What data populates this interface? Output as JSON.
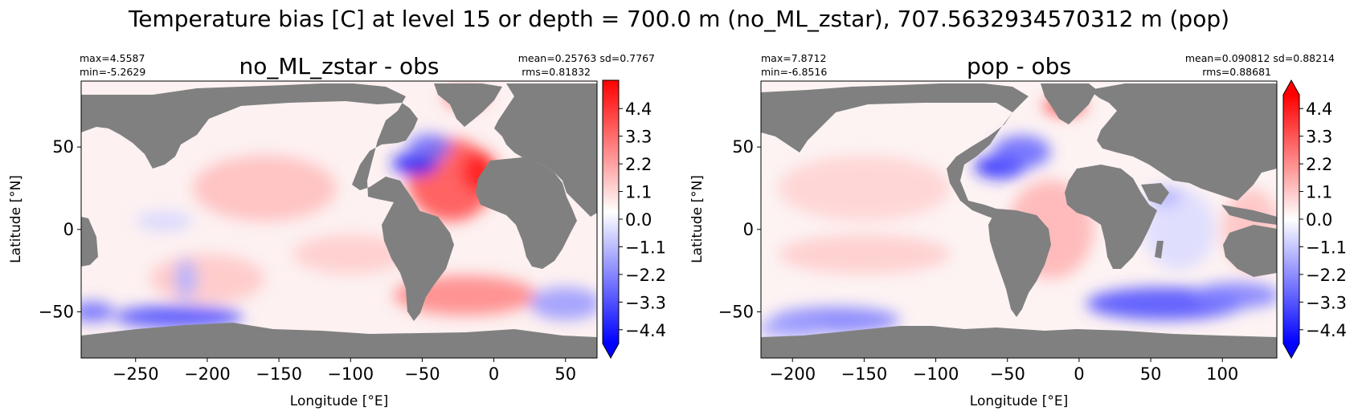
{
  "figure": {
    "suptitle": "Temperature bias [C] at level 15 or depth = 700.0 m (no_ML_zstar), 707.5632934570312 m (pop)"
  },
  "colors": {
    "land": "#808080",
    "cmap_low": "#0000ff",
    "cmap_mid": "#ffffff",
    "cmap_high": "#ff0000"
  },
  "chart_data": [
    {
      "type": "heatmap",
      "title": "no_ML_zstar - obs",
      "xlabel": "Longitude [°E]",
      "ylabel": "Latitude [°N]",
      "stats_left": [
        "max=4.5587",
        "min=-5.2629"
      ],
      "stats_right": [
        "mean=0.25763 sd=0.7767",
        "rms=0.81832"
      ],
      "xlim": [
        -288,
        72
      ],
      "ylim": [
        -78,
        90
      ],
      "xticks": [
        -250,
        -200,
        -150,
        -100,
        -50,
        0,
        50
      ],
      "xtick_labels": [
        "−250",
        "−200",
        "−150",
        "−100",
        "−50",
        "0",
        "50"
      ],
      "yticks": [
        -50,
        0,
        50
      ],
      "ytick_labels": [
        "−50",
        "0",
        "50"
      ],
      "colorbar": {
        "range": [
          -4.95,
          4.95
        ],
        "ticks": [
          4.4,
          3.3,
          2.2,
          1.1,
          0.0,
          -1.1,
          -2.2,
          -3.3,
          -4.4
        ],
        "tick_labels": [
          "4.4",
          "3.3",
          "2.2",
          "1.1",
          "0.0",
          "−1.1",
          "−2.2",
          "−3.3",
          "−4.4"
        ],
        "extend": "min"
      },
      "blobs": [
        {
          "lon": -30,
          "lat": 30,
          "rx": 30,
          "ry": 25,
          "value": 3.5
        },
        {
          "lon": -10,
          "lat": 35,
          "rx": 12,
          "ry": 12,
          "value": 4.4
        },
        {
          "lon": -55,
          "lat": 40,
          "rx": 16,
          "ry": 7,
          "value": -4.4
        },
        {
          "lon": -45,
          "lat": 50,
          "rx": 15,
          "ry": 8,
          "value": -2.8
        },
        {
          "lon": -20,
          "lat": 80,
          "rx": 15,
          "ry": 6,
          "value": 2.8
        },
        {
          "lon": -20,
          "lat": -40,
          "rx": 50,
          "ry": 12,
          "value": 2.4
        },
        {
          "lon": 50,
          "lat": -45,
          "rx": 25,
          "ry": 10,
          "value": -2.0
        },
        {
          "lon": -220,
          "lat": -53,
          "rx": 45,
          "ry": 7,
          "value": -3.5
        },
        {
          "lon": -280,
          "lat": -50,
          "rx": 15,
          "ry": 6,
          "value": -3.0
        },
        {
          "lon": -160,
          "lat": 25,
          "rx": 50,
          "ry": 20,
          "value": 1.3
        },
        {
          "lon": -200,
          "lat": -30,
          "rx": 40,
          "ry": 15,
          "value": 1.1
        },
        {
          "lon": -100,
          "lat": -15,
          "rx": 40,
          "ry": 12,
          "value": 1.0
        },
        {
          "lon": -230,
          "lat": 5,
          "rx": 20,
          "ry": 6,
          "value": -0.8
        },
        {
          "lon": -215,
          "lat": -30,
          "rx": 8,
          "ry": 12,
          "value": -1.5
        }
      ]
    },
    {
      "type": "heatmap",
      "title": "pop - obs",
      "xlabel": "Longitude [°E]",
      "ylabel": "Latitude [°N]",
      "stats_left": [
        "max=7.8712",
        "min=-6.8516"
      ],
      "stats_right": [
        "mean=0.090812 sd=0.88214",
        "rms=0.88681"
      ],
      "xlim": [
        -222,
        138
      ],
      "ylim": [
        -78,
        90
      ],
      "xticks": [
        -200,
        -150,
        -100,
        -50,
        0,
        50,
        100
      ],
      "xtick_labels": [
        "−200",
        "−150",
        "−100",
        "−50",
        "0",
        "50",
        "100"
      ],
      "yticks": [
        -50,
        0,
        50
      ],
      "ytick_labels": [
        "−50",
        "0",
        "50"
      ],
      "colorbar": {
        "range": [
          -4.95,
          4.95
        ],
        "ticks": [
          4.4,
          3.3,
          2.2,
          1.1,
          0.0,
          -1.1,
          -2.2,
          -3.3,
          -4.4
        ],
        "tick_labels": [
          "4.4",
          "3.3",
          "2.2",
          "1.1",
          "0.0",
          "−1.1",
          "−2.2",
          "−3.3",
          "−4.4"
        ],
        "extend": "both"
      },
      "blobs": [
        {
          "lon": -55,
          "lat": 38,
          "rx": 18,
          "ry": 7,
          "value": -4.4
        },
        {
          "lon": -40,
          "lat": 47,
          "rx": 20,
          "ry": 10,
          "value": -3.0
        },
        {
          "lon": -10,
          "lat": 75,
          "rx": 15,
          "ry": 6,
          "value": 3.5
        },
        {
          "lon": 60,
          "lat": -45,
          "rx": 55,
          "ry": 10,
          "value": -3.5
        },
        {
          "lon": 110,
          "lat": -40,
          "rx": 30,
          "ry": 8,
          "value": -2.5
        },
        {
          "lon": -170,
          "lat": -55,
          "rx": 45,
          "ry": 8,
          "value": -2.5
        },
        {
          "lon": -200,
          "lat": -60,
          "rx": 25,
          "ry": 6,
          "value": -1.8
        },
        {
          "lon": -20,
          "lat": 0,
          "rx": 30,
          "ry": 30,
          "value": 1.5
        },
        {
          "lon": -150,
          "lat": 25,
          "rx": 60,
          "ry": 20,
          "value": 0.9
        },
        {
          "lon": -150,
          "lat": -15,
          "rx": 60,
          "ry": 12,
          "value": 1.0
        },
        {
          "lon": 70,
          "lat": 0,
          "rx": 25,
          "ry": 25,
          "value": -0.7
        },
        {
          "lon": 120,
          "lat": 0,
          "rx": 20,
          "ry": 25,
          "value": 1.2
        },
        {
          "lon": 60,
          "lat": 20,
          "rx": 12,
          "ry": 6,
          "value": -1.5
        }
      ]
    }
  ]
}
